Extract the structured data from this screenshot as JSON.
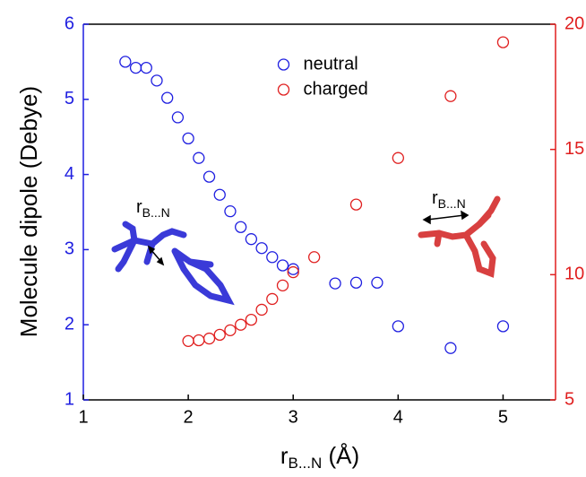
{
  "chart_data": {
    "type": "scatter",
    "xlabel": {
      "main": "r",
      "sub": "B...N",
      "rest": " (Å)"
    },
    "ylabel": "Molecule dipole (Debye)",
    "xlim": [
      1,
      5.5
    ],
    "xticks": [
      1,
      2,
      3,
      4,
      5
    ],
    "ylim": [
      1,
      6
    ],
    "yticks": [
      1,
      2,
      3,
      4,
      5,
      6
    ],
    "y2lim": [
      5,
      20
    ],
    "y2ticks": [
      5,
      10,
      15,
      20
    ],
    "ycolor": "#1f1fe0",
    "y2color": "#e01f1f",
    "legend": "upper center",
    "series": [
      {
        "name": "neutral",
        "color": "#1f1fe0",
        "x": [
          1.4,
          1.5,
          1.6,
          1.7,
          1.8,
          1.9,
          2.0,
          2.1,
          2.2,
          2.3,
          2.4,
          2.5,
          2.6,
          2.7,
          2.8,
          2.9,
          3.0,
          3.4,
          3.6,
          3.8,
          4.0,
          4.5,
          5.0
        ],
        "values": [
          5.5,
          5.42,
          5.42,
          5.25,
          5.02,
          4.76,
          4.48,
          4.22,
          3.97,
          3.73,
          3.51,
          3.3,
          3.14,
          3.02,
          2.9,
          2.79,
          2.74,
          2.55,
          2.56,
          2.56,
          1.98,
          1.69,
          1.98
        ]
      },
      {
        "name": "charged",
        "color": "#e01f1f",
        "axis": "y2",
        "x": [
          2.0,
          2.1,
          2.2,
          2.3,
          2.4,
          2.5,
          2.6,
          2.7,
          2.8,
          2.9,
          3.0,
          3.2,
          3.6,
          4.0,
          4.5,
          5.0
        ],
        "values": [
          7.35,
          7.38,
          7.45,
          7.6,
          7.78,
          8.0,
          8.2,
          8.6,
          9.03,
          9.57,
          10.1,
          10.7,
          12.8,
          14.66,
          17.13,
          19.28
        ]
      }
    ],
    "annotations": [
      {
        "text": "r",
        "sub": "B...N"
      },
      {
        "text": "r",
        "sub": "B...N"
      }
    ]
  }
}
